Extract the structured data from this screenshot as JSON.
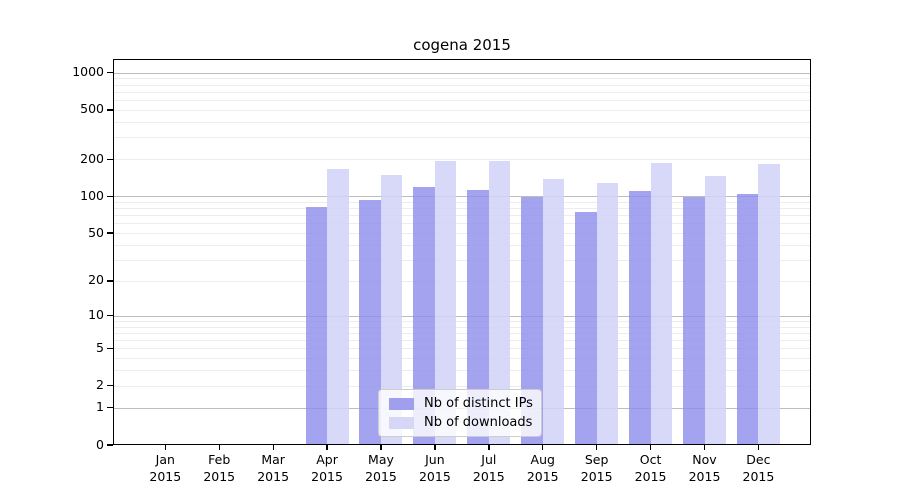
{
  "chart_data": {
    "type": "bar",
    "title": "cogena 2015",
    "categories": [
      "Jan 2015",
      "Feb 2015",
      "Mar 2015",
      "Apr 2015",
      "May 2015",
      "Jun 2015",
      "Jul 2015",
      "Aug 2015",
      "Sep 2015",
      "Oct 2015",
      "Nov 2015",
      "Dec 2015"
    ],
    "series": [
      {
        "name": "Nb of distinct IPs",
        "color": "#9f9fee",
        "bar_color": "rgba(140,140,236,0.8)",
        "values": [
          0,
          0,
          0,
          82,
          93,
          120,
          113,
          99,
          75,
          110,
          98,
          104
        ]
      },
      {
        "name": "Nb of downloads",
        "color": "#d6d6f7",
        "bar_color": "rgba(209,209,248,0.85)",
        "values": [
          0,
          0,
          0,
          165,
          150,
          194,
          192,
          137,
          128,
          185,
          146,
          184
        ]
      }
    ],
    "xlabel": "",
    "ylabel": "",
    "yscale": "log1p",
    "ylim": [
      0,
      1300
    ],
    "y_ticks": [
      0,
      1,
      2,
      5,
      10,
      20,
      50,
      100,
      200,
      500,
      1000
    ],
    "grid": "horizontal, log minor + major lines",
    "grid_major_color": "#bdbdbd",
    "grid_minor_color": "#ededed",
    "legend_position": "lower center"
  }
}
